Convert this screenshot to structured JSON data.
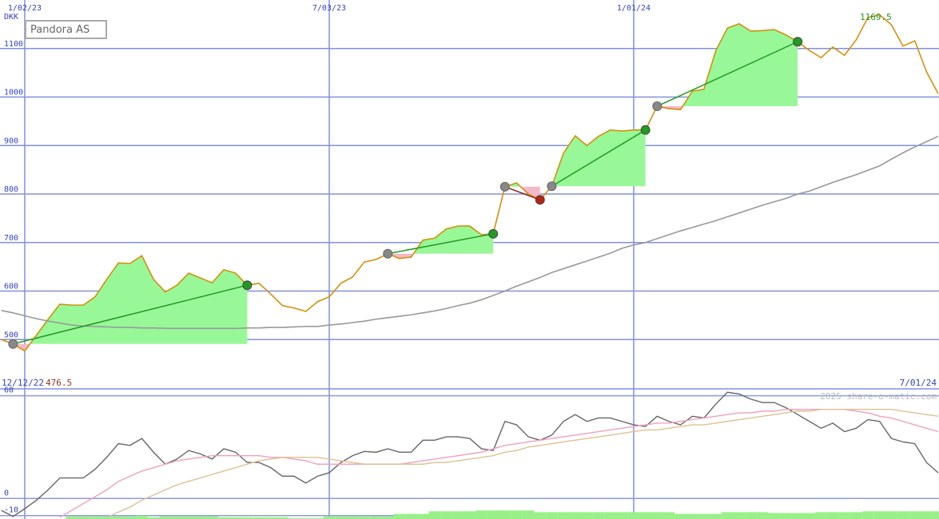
{
  "chart_data": [
    {
      "type": "line",
      "title": "Pandora AS",
      "unit": "DKK",
      "grid": true,
      "x": [
        "12/19/22",
        "12/26/22",
        "1/02/23",
        "1/09/23",
        "1/16/23",
        "1/23/23",
        "1/30/23",
        "2/06/23",
        "2/13/23",
        "2/20/23",
        "2/27/23",
        "3/06/23",
        "3/13/23",
        "3/20/23",
        "3/27/23",
        "4/03/23",
        "4/10/23",
        "4/17/23",
        "4/24/23",
        "5/01/23",
        "5/08/23",
        "5/15/23",
        "5/22/23",
        "5/29/23",
        "6/05/23",
        "6/12/23",
        "6/19/23",
        "6/26/23",
        "7/03/23",
        "7/10/23",
        "7/17/23",
        "7/24/23",
        "7/31/23",
        "8/07/23",
        "8/14/23",
        "8/21/23",
        "8/28/23",
        "9/04/23",
        "9/11/23",
        "9/18/23",
        "9/25/23",
        "10/02/23",
        "10/09/23",
        "10/16/23",
        "10/23/23",
        "10/30/23",
        "11/06/23",
        "11/13/23",
        "11/20/23",
        "11/27/23",
        "12/04/23",
        "12/11/23",
        "12/18/23",
        "12/25/23",
        "1/01/24",
        "1/08/24",
        "1/15/24",
        "1/22/24",
        "1/29/24",
        "2/05/24",
        "2/12/24",
        "2/19/24",
        "2/26/24",
        "3/04/24",
        "3/11/24",
        "3/18/24",
        "3/25/24",
        "4/01/24",
        "4/08/24",
        "4/15/24",
        "4/22/24",
        "4/29/24",
        "5/06/24",
        "5/13/24",
        "5/20/24",
        "5/27/24",
        "6/03/24",
        "6/10/24",
        "6/17/24",
        "6/24/24",
        "7/01/24"
      ],
      "xlim": [
        "12/12/22",
        "7/01/24"
      ],
      "xticks": [
        "1/02/23",
        "7/03/23",
        "1/01/24"
      ],
      "ylim": [
        400,
        1200
      ],
      "yticks": [
        500,
        600,
        700,
        800,
        900,
        1000,
        1100
      ],
      "max": 1169.5,
      "min": 476.5,
      "series": [
        {
          "name": "Pandora AS",
          "color": "#d4900a",
          "values": [
            500,
            491,
            476.5,
            509,
            542,
            573,
            571,
            571,
            588,
            624,
            658,
            657,
            673,
            624,
            598,
            612,
            637,
            627,
            617,
            644,
            637,
            612,
            616,
            594,
            570,
            565,
            558,
            578,
            588,
            616,
            629,
            660,
            665,
            677,
            667,
            670,
            705,
            709,
            728,
            734,
            734,
            716,
            718,
            815,
            823,
            800,
            788,
            816,
            884,
            920,
            900,
            919,
            932,
            930,
            932,
            932,
            981,
            976,
            974,
            1012,
            1016,
            1095,
            1142,
            1151,
            1136,
            1137,
            1139,
            1128,
            1114,
            1096,
            1081,
            1103,
            1086,
            1118,
            1164,
            1169.5,
            1149,
            1105,
            1116,
            1052,
            1007
          ]
        },
        {
          "color": "#999999",
          "values": [
            560,
            555,
            549,
            543,
            538,
            534,
            530,
            528,
            527,
            526,
            525,
            525,
            524,
            524,
            523,
            523,
            523,
            523,
            523,
            523,
            523,
            524,
            524,
            525,
            525,
            526,
            527,
            527,
            530,
            532,
            535,
            538,
            542,
            545,
            548,
            551,
            555,
            559,
            564,
            570,
            575,
            582,
            591,
            600,
            610,
            619,
            628,
            638,
            646,
            654,
            662,
            670,
            678,
            688,
            695,
            700,
            708,
            716,
            724,
            731,
            738,
            745,
            753,
            761,
            769,
            777,
            784,
            791,
            800,
            806,
            815,
            824,
            832,
            840,
            849,
            858,
            872,
            885,
            897,
            908,
            919
          ]
        }
      ],
      "trades": [
        {
          "x": [
            "12/26/22",
            "5/15/23"
          ],
          "values": [
            491,
            612
          ],
          "color": "#229922"
        },
        {
          "x": [
            "8/07/23",
            "10/09/23"
          ],
          "values": [
            677,
            718
          ],
          "color": "#229922"
        },
        {
          "x": [
            "10/16/23",
            "11/06/23"
          ],
          "values": [
            815,
            788
          ],
          "color": "#bb2211"
        },
        {
          "x": [
            "11/13/23",
            "1/08/24"
          ],
          "values": [
            816,
            932
          ],
          "color": "#229922"
        },
        {
          "x": [
            "1/15/24",
            "4/08/24"
          ],
          "values": [
            981,
            1114
          ],
          "color": "#229922"
        }
      ]
    },
    {
      "type": "line",
      "watermark": "2025 share-o-matic.com",
      "ylim": [
        -12,
        64
      ],
      "yticks": [
        -10,
        0,
        60
      ],
      "series": [
        {
          "color": "#666666",
          "values": [
            -7,
            -10.5,
            -6,
            -1,
            5,
            12,
            12,
            12,
            17,
            24,
            32,
            31,
            35,
            27,
            20,
            23,
            28,
            26,
            23,
            29,
            27,
            21,
            21,
            18,
            13,
            13,
            9,
            13,
            15,
            21,
            25,
            27.5,
            27,
            29,
            27,
            27,
            34,
            34,
            36,
            36,
            35,
            29,
            28,
            45,
            43,
            36,
            34,
            37,
            45,
            49,
            45,
            47,
            47,
            45,
            43,
            42,
            48,
            45,
            43,
            48,
            47,
            55,
            62,
            61,
            58,
            56,
            56,
            53,
            49,
            45,
            41,
            44,
            39,
            41,
            46,
            45,
            35,
            33,
            32,
            21,
            15
          ]
        },
        {
          "color": "#f0a0c0",
          "values": [
            null,
            null,
            null,
            null,
            null,
            -11,
            -7,
            -3,
            1,
            5,
            10,
            13,
            16,
            18,
            20,
            22,
            23,
            24,
            25,
            25,
            25,
            25,
            25,
            24,
            24,
            23,
            22,
            20,
            20,
            20,
            20,
            20,
            20,
            20,
            20,
            21,
            22,
            23,
            24,
            25,
            26,
            27,
            29,
            31,
            32,
            33,
            34,
            35,
            36,
            37,
            38,
            39,
            40,
            41,
            42,
            43,
            44,
            44,
            45,
            46,
            47,
            48,
            49,
            50,
            50,
            51,
            51,
            52,
            52,
            52,
            52,
            52,
            52,
            51,
            50,
            48,
            47,
            45,
            43,
            41,
            39
          ]
        },
        {
          "color": "#e0c090",
          "values": [
            null,
            null,
            null,
            null,
            null,
            null,
            null,
            null,
            null,
            -11,
            -8,
            -5,
            -1,
            2,
            5,
            8,
            10,
            12,
            14,
            16,
            18,
            20,
            22,
            23,
            24,
            24,
            24,
            24,
            23,
            22,
            21,
            20,
            20,
            20,
            20,
            20,
            20,
            21,
            21,
            22,
            23,
            24,
            25,
            27,
            28,
            30,
            31,
            32,
            33,
            34,
            35,
            36,
            37,
            38,
            39,
            40,
            40,
            41,
            42,
            43,
            43,
            44,
            45,
            46,
            47,
            48,
            49,
            50,
            51,
            51,
            52,
            52,
            52,
            52,
            52,
            52,
            52,
            51,
            50,
            49,
            48
          ]
        }
      ],
      "bars": {
        "color": "#99f088",
        "values": [
          null,
          null,
          null,
          null,
          null,
          null,
          -10.5,
          -10.5,
          -10.5,
          -10.5,
          -10.5,
          -10.5,
          -10,
          -11,
          -10.5,
          -10.5,
          -10.5,
          -10.5,
          -10.5,
          -11,
          -11,
          -11,
          -11,
          -11,
          -11,
          -11.5,
          -11.5,
          -11.5,
          -10.5,
          -10.5,
          -10.5,
          -10.5,
          -10.5,
          -10.5,
          -9,
          -9,
          -9,
          -7.5,
          -7.5,
          -7.5,
          -7.5,
          -7,
          -7,
          -7,
          -7,
          -7,
          -8,
          -8,
          -8,
          -8,
          -8,
          -8,
          -8,
          -8,
          -8,
          -8,
          -8,
          -8,
          -9,
          -9,
          -9,
          -9,
          -8,
          -8,
          -8,
          -8,
          -8.5,
          -8.5,
          -8.5,
          -8.5,
          -8,
          -8,
          -8,
          -8,
          -7.5,
          -7.5,
          -7.5,
          -7.5,
          -7.5,
          -7.5,
          -7.5
        ]
      }
    }
  ]
}
